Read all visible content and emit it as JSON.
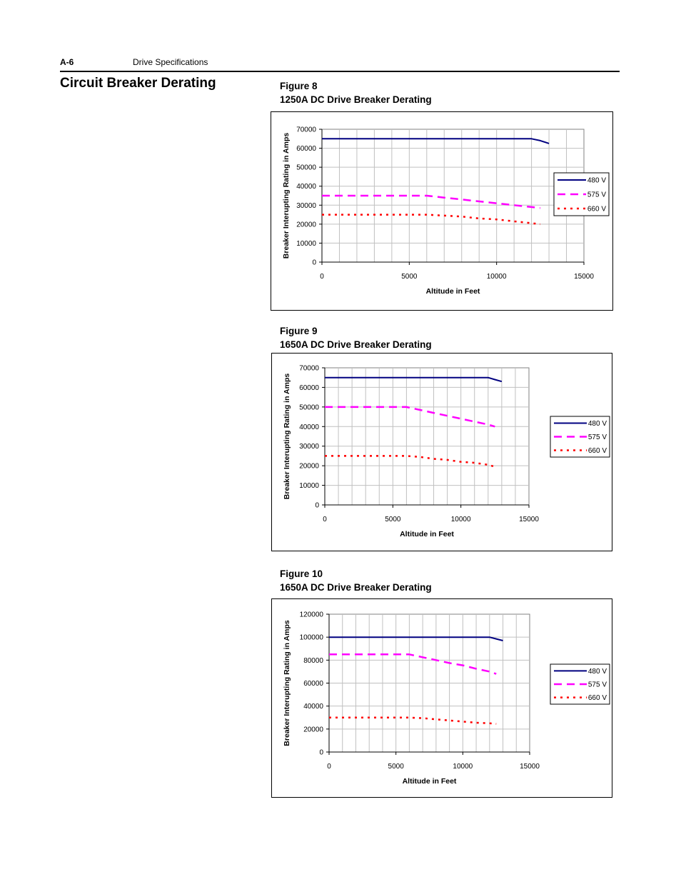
{
  "header": {
    "page_number": "A-6",
    "section": "Drive Specifications"
  },
  "section_title": "Circuit Breaker Derating",
  "figures": [
    {
      "label": "Figure 8",
      "title": "1250A DC Drive Breaker Derating"
    },
    {
      "label": "Figure 9",
      "title": "1650A DC Drive Breaker Derating"
    },
    {
      "label": "Figure 10",
      "title": "1650A DC Drive Breaker Derating"
    }
  ],
  "colors": {
    "480V": "#000080",
    "575V": "#ff00ff",
    "660V": "#ff0000",
    "grid": "#c0c0c0"
  },
  "chart_data": [
    {
      "type": "line",
      "xlabel": "Altitude in Feet",
      "ylabel": "Breaker Interupting Rating in Amps",
      "xlim": [
        0,
        15000
      ],
      "ylim": [
        0,
        70000
      ],
      "xticks": [
        0,
        5000,
        10000,
        15000
      ],
      "yticks": [
        0,
        10000,
        20000,
        30000,
        40000,
        50000,
        60000,
        70000
      ],
      "grid": true,
      "legend_position": "right",
      "series": [
        {
          "name": "480 V",
          "style": "solid",
          "x": [
            0,
            12000,
            12500,
            13000
          ],
          "y": [
            65000,
            65000,
            64000,
            62500
          ]
        },
        {
          "name": "575 V",
          "style": "dashed",
          "x": [
            0,
            6000,
            7000,
            8000,
            9000,
            10000,
            11000,
            12000,
            12500
          ],
          "y": [
            35000,
            35000,
            34000,
            33000,
            32000,
            31000,
            30000,
            29000,
            28500
          ]
        },
        {
          "name": "660 V",
          "style": "dotted",
          "x": [
            0,
            6000,
            7000,
            8000,
            9000,
            10000,
            11000,
            12000,
            12500
          ],
          "y": [
            25000,
            25000,
            24500,
            24000,
            23000,
            22500,
            21500,
            20500,
            20000
          ]
        }
      ]
    },
    {
      "type": "line",
      "xlabel": "Altitude in Feet",
      "ylabel": "Breaker Interupting Rating in Amps",
      "xlim": [
        0,
        15000
      ],
      "ylim": [
        0,
        70000
      ],
      "xticks": [
        0,
        5000,
        10000,
        15000
      ],
      "yticks": [
        0,
        10000,
        20000,
        30000,
        40000,
        50000,
        60000,
        70000
      ],
      "grid": true,
      "legend_position": "right",
      "series": [
        {
          "name": "480 V",
          "style": "solid",
          "x": [
            0,
            12000,
            12500,
            13000
          ],
          "y": [
            65000,
            65000,
            64000,
            63000
          ]
        },
        {
          "name": "575 V",
          "style": "dashed",
          "x": [
            0,
            6000,
            7000,
            8000,
            9000,
            10000,
            11000,
            12000,
            12500
          ],
          "y": [
            50000,
            50000,
            48500,
            47000,
            45500,
            44000,
            42500,
            41000,
            40000
          ]
        },
        {
          "name": "660 V",
          "style": "dotted",
          "x": [
            0,
            6000,
            7000,
            8000,
            9000,
            10000,
            11000,
            12000,
            12500
          ],
          "y": [
            25000,
            25000,
            24500,
            23500,
            23000,
            22000,
            21500,
            20500,
            19500
          ]
        }
      ]
    },
    {
      "type": "line",
      "xlabel": "Altitude in Feet",
      "ylabel": "Breaker Interupting Rating in Amps",
      "xlim": [
        0,
        15000
      ],
      "ylim": [
        0,
        120000
      ],
      "xticks": [
        0,
        5000,
        10000,
        15000
      ],
      "yticks": [
        0,
        20000,
        40000,
        60000,
        80000,
        100000,
        120000
      ],
      "grid": true,
      "legend_position": "right",
      "series": [
        {
          "name": "480 V",
          "style": "solid",
          "x": [
            0,
            12000,
            12500,
            13000
          ],
          "y": [
            100000,
            100000,
            98500,
            97000
          ]
        },
        {
          "name": "575 V",
          "style": "dashed",
          "x": [
            0,
            6000,
            7000,
            8000,
            9000,
            10000,
            11000,
            12000,
            12500
          ],
          "y": [
            85000,
            85000,
            82500,
            80000,
            77500,
            75500,
            72500,
            70000,
            68000
          ]
        },
        {
          "name": "660 V",
          "style": "dotted",
          "x": [
            0,
            6000,
            7000,
            8000,
            9000,
            10000,
            11000,
            12000,
            12500
          ],
          "y": [
            30000,
            30000,
            29500,
            28500,
            27500,
            26500,
            25500,
            25000,
            24500
          ]
        }
      ]
    }
  ]
}
